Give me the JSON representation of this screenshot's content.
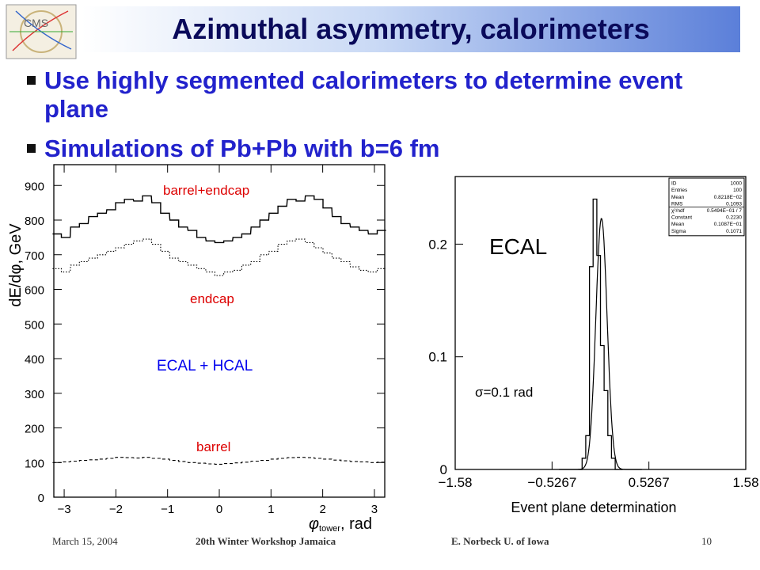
{
  "slide": {
    "title": "Azimuthal asymmetry, calorimeters",
    "bullets": [
      "Use highly segmented calorimeters to determine event plane",
      "Simulations of Pb+Pb with b=6 fm"
    ],
    "logo_text": "CMS"
  },
  "footer": {
    "date": "March 15, 2004",
    "event": "20th Winter Workshop  Jamaica",
    "author": "E. Norbeck   U. of Iowa",
    "page": "10"
  },
  "colors": {
    "title_text": "#0a0a5a",
    "bullet_text": "#2222cc",
    "plot_label_red": "#dd0000",
    "plot_label_blue": "#0000ee"
  },
  "chart_data": [
    {
      "type": "line",
      "ylabel": "dE/dφ, GeV",
      "xlabel": "φ_tower, rad",
      "xlabel_main": "φ",
      "xlabel_sub": "tower",
      "xlabel_rest": ", rad",
      "xlim": [
        -3.2,
        3.2
      ],
      "ylim": [
        0,
        960
      ],
      "xticks": [
        -3,
        -2,
        -1,
        0,
        1,
        2,
        3
      ],
      "yticks": [
        0,
        100,
        200,
        300,
        400,
        500,
        600,
        700,
        800,
        900
      ],
      "annotations": {
        "top": "barrel+endcap",
        "mid": "endcap",
        "center": "ECAL + HCAL",
        "bottom": "barrel"
      },
      "series": [
        {
          "name": "barrel+endcap",
          "style": "solid",
          "x": [
            -3.14,
            -2.97,
            -2.79,
            -2.62,
            -2.44,
            -2.27,
            -2.09,
            -1.92,
            -1.75,
            -1.57,
            -1.4,
            -1.22,
            -1.05,
            -0.87,
            -0.7,
            -0.52,
            -0.35,
            -0.17,
            0.0,
            0.17,
            0.35,
            0.52,
            0.7,
            0.87,
            1.05,
            1.22,
            1.4,
            1.57,
            1.75,
            1.92,
            2.09,
            2.27,
            2.44,
            2.62,
            2.79,
            2.97,
            3.14
          ],
          "values": [
            760,
            750,
            780,
            790,
            810,
            820,
            830,
            850,
            860,
            855,
            870,
            850,
            820,
            800,
            780,
            770,
            750,
            740,
            735,
            740,
            750,
            760,
            780,
            800,
            820,
            840,
            860,
            855,
            870,
            860,
            835,
            810,
            790,
            780,
            770,
            760,
            770
          ]
        },
        {
          "name": "endcap",
          "style": "dotted",
          "x": [
            -3.14,
            -2.97,
            -2.79,
            -2.62,
            -2.44,
            -2.27,
            -2.09,
            -1.92,
            -1.75,
            -1.57,
            -1.4,
            -1.22,
            -1.05,
            -0.87,
            -0.7,
            -0.52,
            -0.35,
            -0.17,
            0.0,
            0.17,
            0.35,
            0.52,
            0.7,
            0.87,
            1.05,
            1.22,
            1.4,
            1.57,
            1.75,
            1.92,
            2.09,
            2.27,
            2.44,
            2.62,
            2.79,
            2.97,
            3.14
          ],
          "values": [
            660,
            650,
            670,
            680,
            690,
            700,
            710,
            720,
            730,
            740,
            745,
            730,
            710,
            690,
            680,
            670,
            660,
            650,
            640,
            650,
            655,
            670,
            680,
            700,
            710,
            730,
            740,
            745,
            735,
            720,
            705,
            690,
            680,
            665,
            655,
            650,
            660
          ]
        },
        {
          "name": "barrel",
          "style": "dashed",
          "x": [
            -3.14,
            -2.97,
            -2.79,
            -2.62,
            -2.44,
            -2.27,
            -2.09,
            -1.92,
            -1.75,
            -1.57,
            -1.4,
            -1.22,
            -1.05,
            -0.87,
            -0.7,
            -0.52,
            -0.35,
            -0.17,
            0.0,
            0.17,
            0.35,
            0.52,
            0.7,
            0.87,
            1.05,
            1.22,
            1.4,
            1.57,
            1.75,
            1.92,
            2.09,
            2.27,
            2.44,
            2.62,
            2.79,
            2.97,
            3.14
          ],
          "values": [
            100,
            102,
            104,
            106,
            108,
            110,
            112,
            115,
            114,
            113,
            115,
            112,
            110,
            106,
            103,
            100,
            98,
            96,
            95,
            97,
            99,
            101,
            104,
            106,
            110,
            112,
            114,
            115,
            114,
            112,
            110,
            107,
            105,
            103,
            102,
            100,
            101
          ]
        }
      ]
    },
    {
      "type": "line",
      "xlabel": "Event plane determination",
      "xlim": [
        -1.58,
        1.58
      ],
      "ylim": [
        0,
        0.26
      ],
      "xticks": [
        -1.58,
        -0.5267,
        0.5267,
        1.58
      ],
      "xtick_labels": [
        "−1.58",
        "−0.5267",
        "0.5267",
        "1.58"
      ],
      "yticks": [
        0,
        0.1,
        0.2
      ],
      "ytick_labels": [
        "0",
        "0.1",
        "0.2"
      ],
      "annotations": {
        "label": "ECAL",
        "sigma": "σ=0.1 rad"
      },
      "stats_box": [
        [
          "ID",
          "1000"
        ],
        [
          "Entries",
          "100"
        ],
        [
          "Mean",
          "0.8218E−02"
        ],
        [
          "RMS",
          "0.1093"
        ],
        [
          "χ²/ndf",
          "0.5494E−01 / 7"
        ],
        [
          "Constant",
          "0.2230"
        ],
        [
          "Mean",
          "0.1087E−01"
        ],
        [
          "Sigma",
          "0.1071"
        ]
      ],
      "histogram": {
        "bin_edges": [
          -0.24,
          -0.2,
          -0.16,
          -0.12,
          -0.08,
          -0.04,
          0.0,
          0.04,
          0.08,
          0.12,
          0.16,
          0.2,
          0.24
        ],
        "values": [
          0.0,
          0.01,
          0.03,
          0.18,
          0.24,
          0.19,
          0.11,
          0.07,
          0.03,
          0.01,
          0.0,
          0.0
        ]
      },
      "gaussian_fit": {
        "constant": 0.223,
        "mean": 0.01087,
        "sigma": 0.1071
      }
    }
  ]
}
